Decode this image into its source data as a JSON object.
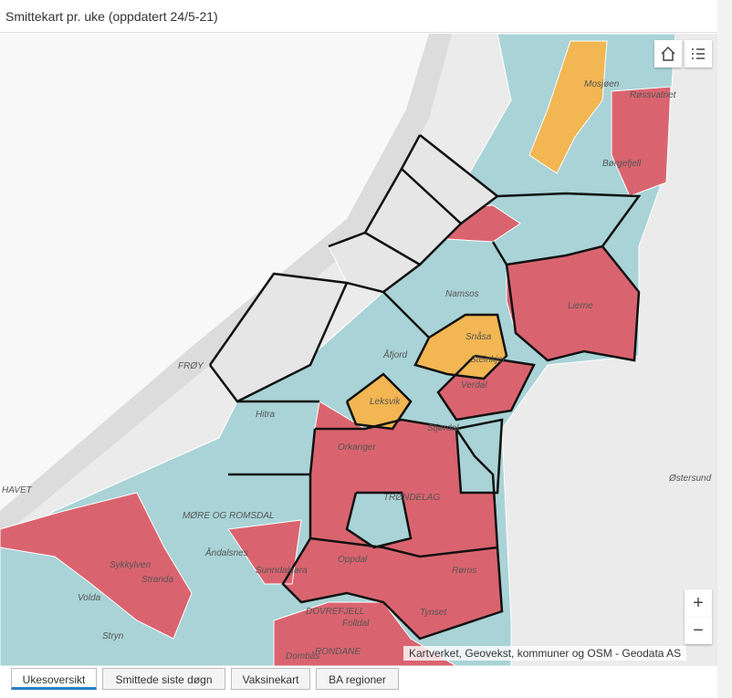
{
  "header": {
    "title": "Smittekart pr. uke (oppdatert 24/5-21)"
  },
  "map": {
    "labels": [
      "Mosjøen",
      "Røssvatnet",
      "Børgefjell",
      "Namsos",
      "Snåsa",
      "Steinkjer",
      "Verdal",
      "Leksvik",
      "Åfjord",
      "Hitra",
      "Stjørdal",
      "Orkanger",
      "TRØNDELAG",
      "Oppdal",
      "Røros",
      "Sunndalsøra",
      "Tynset",
      "Folldal",
      "Dombås",
      "RONDANE",
      "DOVREFJELL",
      "MØRE OG ROMSDAL",
      "Åndalsnes",
      "Stranda",
      "Volda",
      "Stryn",
      "Sykkylven",
      "Østersund",
      "FRØY",
      "HAVET",
      "Lierne"
    ],
    "attribution": "Kartverket, Geovekst, kommuner og OSM - Geodata AS",
    "zoom": {
      "in": "+",
      "out": "−"
    }
  },
  "tabs": [
    "Ukesoversikt",
    "Smittede siste døgn",
    "Vaksinekart",
    "BA regioner"
  ]
}
